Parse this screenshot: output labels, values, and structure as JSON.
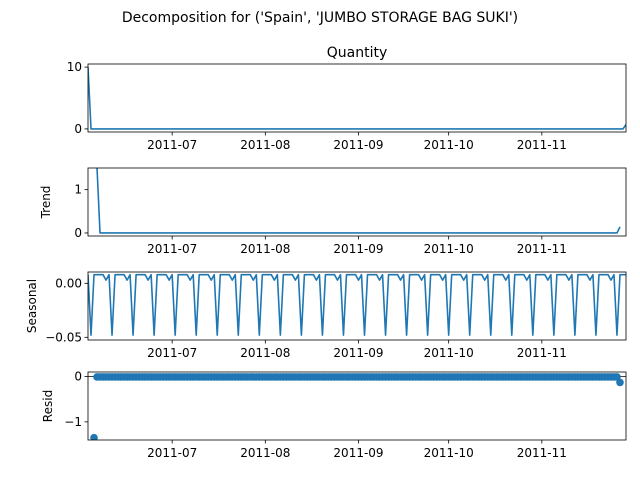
{
  "figure": {
    "suptitle": "Decomposition for ('Spain', 'JUMBO STORAGE BAG SUKI')"
  },
  "chart_data": [
    {
      "type": "line",
      "title": "Quantity",
      "ylabel": "",
      "xlim": [
        "2011-06-03",
        "2011-11-29"
      ],
      "ylim": [
        -0.5,
        10.5
      ],
      "yticks": [
        0,
        10
      ],
      "ytick_labels": [
        "0",
        "10"
      ],
      "xticks": [
        "2011-07-01",
        "2011-08-01",
        "2011-09-01",
        "2011-10-01",
        "2011-11-01"
      ],
      "xtick_labels": [
        "2011-07",
        "2011-08",
        "2011-09",
        "2011-10",
        "2011-11"
      ],
      "series": [
        {
          "color": "#1f77b4",
          "points": [
            [
              "2011-06-03",
              10
            ],
            [
              "2011-06-04",
              0
            ],
            [
              "2011-11-28",
              0
            ],
            [
              "2011-11-29",
              0.7
            ]
          ]
        }
      ]
    },
    {
      "type": "line",
      "title": "",
      "ylabel": "Trend",
      "xlim": [
        "2011-06-03",
        "2011-11-29"
      ],
      "ylim": [
        -0.07,
        1.5
      ],
      "yticks": [
        0,
        1
      ],
      "ytick_labels": [
        "0",
        "1"
      ],
      "xticks": [
        "2011-07-01",
        "2011-08-01",
        "2011-09-01",
        "2011-10-01",
        "2011-11-01"
      ],
      "xtick_labels": [
        "2011-07",
        "2011-08",
        "2011-09",
        "2011-10",
        "2011-11"
      ],
      "series": [
        {
          "color": "#1f77b4",
          "points": [
            [
              "2011-06-06",
              1.5
            ],
            [
              "2011-06-07",
              0
            ],
            [
              "2011-11-26",
              0
            ],
            [
              "2011-11-27",
              0.14
            ]
          ]
        }
      ]
    },
    {
      "type": "line",
      "title": "",
      "ylabel": "Seasonal",
      "xlim": [
        "2011-06-03",
        "2011-11-29"
      ],
      "ylim": [
        -0.0525,
        0.0105
      ],
      "yticks": [
        0.0,
        -0.05
      ],
      "ytick_labels": [
        "0.00",
        "−0.05"
      ],
      "xticks": [
        "2011-07-01",
        "2011-08-01",
        "2011-09-01",
        "2011-10-01",
        "2011-11-01"
      ],
      "xtick_labels": [
        "2011-07",
        "2011-08",
        "2011-09",
        "2011-10",
        "2011-11"
      ],
      "seasonal_pattern": {
        "start": "2011-06-03",
        "end": "2011-11-29",
        "period_days": 7,
        "weekly_values": [
          0.008,
          -0.048,
          0.008,
          0.008,
          0.008,
          0.008,
          0.003
        ]
      },
      "series": [
        {
          "color": "#1f77b4"
        }
      ]
    },
    {
      "type": "scatter",
      "title": "",
      "ylabel": "Resid",
      "xlim": [
        "2011-06-03",
        "2011-11-29"
      ],
      "ylim": [
        -1.4,
        0.1
      ],
      "yticks": [
        0,
        -1
      ],
      "ytick_labels": [
        "0",
        "−1"
      ],
      "xticks": [
        "2011-07-01",
        "2011-08-01",
        "2011-09-01",
        "2011-10-01",
        "2011-11-01"
      ],
      "xtick_labels": [
        "2011-07",
        "2011-08",
        "2011-09",
        "2011-10",
        "2011-11"
      ],
      "baseline": 0,
      "residual_run": {
        "start": "2011-06-06",
        "end": "2011-11-26",
        "value": -0.01
      },
      "points": [
        [
          "2011-06-05",
          -1.35
        ],
        [
          "2011-11-27",
          -0.13
        ]
      ],
      "series": [
        {
          "color": "#1f77b4"
        }
      ]
    }
  ]
}
